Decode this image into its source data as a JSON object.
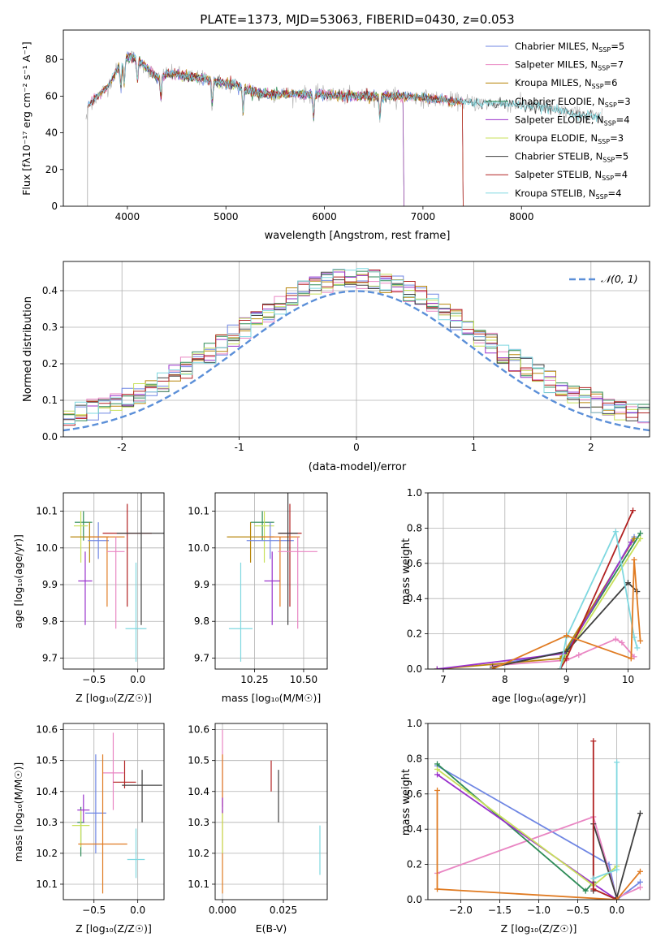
{
  "title": "PLATE=1373, MJD=53063, FIBERID=0430, z=0.053",
  "colors": {
    "chabrier_miles": "#6f86e3",
    "salpeter_miles": "#e986c3",
    "kroupa_miles": "#b8860b",
    "chabrier_elodie": "#2e8b57",
    "salpeter_elodie": "#9932cc",
    "kroupa_elodie": "#c8e05a",
    "chabrier_stelib": "#404040",
    "salpeter_stelib": "#b22222",
    "kroupa_stelib": "#7fd8e0",
    "orange": "#e07b22",
    "normal": "#5b8fd8",
    "gridline": "#b0b0b0"
  },
  "chart_data": [
    {
      "id": "spectrum",
      "type": "line",
      "title": "PLATE=1373, MJD=53063, FIBERID=0430, z=0.053",
      "xlabel": "wavelength [Angstrom, rest frame]",
      "ylabel": "Flux [fλ10⁻¹⁷ erg cm⁻² s⁻¹ A⁻¹]",
      "xlim": [
        3350,
        9300
      ],
      "ylim": [
        0,
        96
      ],
      "xticks": [
        4000,
        5000,
        6000,
        7000,
        8000
      ],
      "yticks": [
        0,
        20,
        40,
        60,
        80
      ],
      "grid": false,
      "legend_position": "top-right",
      "legend": [
        "Chabrier MILES, N_SSP=5",
        "Salpeter MILES, N_SSP=7",
        "Kroupa MILES, N_SSP=6",
        "Chabrier ELODIE, N_SSP=3",
        "Salpeter ELODIE, N_SSP=4",
        "Kroupa ELODIE, N_SSP=3",
        "Chabrier STELIB, N_SSP=5",
        "Salpeter STELIB, N_SSP=4",
        "Kroupa STELIB, N_SSP=4"
      ],
      "continuum": {
        "wavelength": [
          3600,
          3700,
          3800,
          3900,
          3950,
          4000,
          4100,
          4200,
          4300,
          4400,
          4500,
          4700,
          4900,
          5100,
          5300,
          5500,
          5800,
          6000,
          6200,
          6500,
          6800,
          7000,
          7200,
          7400,
          7600,
          7800,
          8000,
          8200,
          8400,
          8600,
          8800
        ],
        "flux": [
          55,
          60,
          65,
          75,
          78,
          82,
          80,
          75,
          70,
          72,
          72,
          70,
          68,
          66,
          62,
          61,
          61,
          61,
          60,
          60,
          60,
          59,
          58,
          57,
          56,
          56,
          55,
          54,
          52,
          50,
          48
        ]
      },
      "model_ends": {
        "miles_kroupa_max_wavelength": 7400,
        "elodie_max_wavelength": 6800,
        "stelib_max_wavelength": 8800
      }
    },
    {
      "id": "residuals",
      "type": "histogram",
      "xlabel": "(data-model)/error",
      "ylabel": "Normed distribution",
      "xlim": [
        -2.5,
        2.5
      ],
      "ylim": [
        0,
        0.48
      ],
      "xticks": [
        -2,
        -1,
        0,
        1,
        2
      ],
      "yticks": [
        0.0,
        0.1,
        0.2,
        0.3,
        0.4
      ],
      "grid": true,
      "legend_position": "top-right",
      "legend": [
        "𝒩(0, 1)"
      ],
      "bin_edges_start": -2.5,
      "bin_width": 0.1,
      "normal_curve": {
        "mean": 0,
        "sigma": 1
      }
    },
    {
      "id": "age_vs_Z",
      "type": "scatter",
      "xlabel": "Z [log₁₀(Z/Z☉)]",
      "ylabel": "age  [log₁₀(age/yr)]",
      "xlim": [
        -0.85,
        0.3
      ],
      "ylim": [
        9.67,
        10.15
      ],
      "xticks": [
        -0.5,
        0.0
      ],
      "yticks": [
        9.7,
        9.8,
        9.9,
        10.0,
        10.1
      ],
      "grid": true,
      "points": [
        {
          "model": "chabrier_elodie",
          "x": -0.62,
          "y": 10.07,
          "xerr": 0.1,
          "yerr_lo": 0.05,
          "yerr_hi": 0.03
        },
        {
          "model": "kroupa_elodie",
          "x": -0.65,
          "y": 10.06,
          "xerr": 0.08,
          "yerr_lo": 0.1,
          "yerr_hi": 0.04
        },
        {
          "model": "kroupa_miles",
          "x": -0.55,
          "y": 10.03,
          "xerr": 0.22,
          "yerr_lo": 0.07,
          "yerr_hi": 0.04
        },
        {
          "model": "chabrier_miles",
          "x": -0.45,
          "y": 10.02,
          "xerr": 0.12,
          "yerr_lo": 0.05,
          "yerr_hi": 0.05
        },
        {
          "model": "salpeter_stelib",
          "x": -0.12,
          "y": 10.04,
          "xerr": 0.28,
          "yerr_lo": 0.2,
          "yerr_hi": 0.08
        },
        {
          "model": "orange",
          "x": -0.35,
          "y": 10.03,
          "xerr": 0.2,
          "yerr_lo": 0.19,
          "yerr_hi": 0.0
        },
        {
          "model": "chabrier_stelib",
          "x": 0.04,
          "y": 10.04,
          "xerr": 0.28,
          "yerr_lo": 0.25,
          "yerr_hi": 0.11
        },
        {
          "model": "salpeter_miles",
          "x": -0.25,
          "y": 9.99,
          "xerr": 0.1,
          "yerr_lo": 0.21,
          "yerr_hi": 0.04
        },
        {
          "model": "salpeter_elodie",
          "x": -0.6,
          "y": 9.91,
          "xerr": 0.08,
          "yerr_lo": 0.12,
          "yerr_hi": 0.08
        },
        {
          "model": "kroupa_stelib",
          "x": -0.02,
          "y": 9.78,
          "xerr": 0.12,
          "yerr_lo": 0.09,
          "yerr_hi": 0.18
        }
      ]
    },
    {
      "id": "age_vs_mass",
      "type": "scatter",
      "xlabel": "mass [log₁₀(M/M☉)]",
      "ylabel": "",
      "xlim": [
        10.05,
        10.62
      ],
      "ylim": [
        9.67,
        10.15
      ],
      "xticks": [
        10.25,
        10.5
      ],
      "yticks": [
        9.7,
        9.8,
        9.9,
        10.0,
        10.1
      ],
      "grid": true,
      "points": [
        {
          "model": "chabrier_elodie",
          "x": 10.29,
          "y": 10.07,
          "xerr": 0.06,
          "yerr_lo": 0.05,
          "yerr_hi": 0.03
        },
        {
          "model": "kroupa_elodie",
          "x": 10.3,
          "y": 10.06,
          "xerr": 0.05,
          "yerr_lo": 0.1,
          "yerr_hi": 0.04
        },
        {
          "model": "kroupa_miles",
          "x": 10.23,
          "y": 10.03,
          "xerr": 0.12,
          "yerr_lo": 0.07,
          "yerr_hi": 0.04
        },
        {
          "model": "chabrier_miles",
          "x": 10.33,
          "y": 10.02,
          "xerr": 0.12,
          "yerr_lo": 0.05,
          "yerr_hi": 0.05
        },
        {
          "model": "salpeter_stelib",
          "x": 10.43,
          "y": 10.04,
          "xerr": 0.06,
          "yerr_lo": 0.2,
          "yerr_hi": 0.08
        },
        {
          "model": "orange",
          "x": 10.38,
          "y": 10.03,
          "xerr": 0.1,
          "yerr_lo": 0.19,
          "yerr_hi": 0.0
        },
        {
          "model": "chabrier_stelib",
          "x": 10.42,
          "y": 10.04,
          "xerr": 0.05,
          "yerr_lo": 0.25,
          "yerr_hi": 0.11
        },
        {
          "model": "salpeter_miles",
          "x": 10.47,
          "y": 9.99,
          "xerr": 0.1,
          "yerr_lo": 0.21,
          "yerr_hi": 0.04
        },
        {
          "model": "salpeter_elodie",
          "x": 10.34,
          "y": 9.91,
          "xerr": 0.04,
          "yerr_lo": 0.12,
          "yerr_hi": 0.08
        },
        {
          "model": "kroupa_stelib",
          "x": 10.18,
          "y": 9.78,
          "xerr": 0.06,
          "yerr_lo": 0.09,
          "yerr_hi": 0.18
        }
      ]
    },
    {
      "id": "mass_weight_vs_age",
      "type": "line",
      "xlabel": "age  [log₁₀(age/yr)]",
      "ylabel": "mass weight",
      "xlim": [
        6.75,
        10.35
      ],
      "ylim": [
        0,
        1.0
      ],
      "xticks": [
        7,
        8,
        9,
        10
      ],
      "yticks": [
        0.0,
        0.2,
        0.4,
        0.6,
        0.8,
        1.0
      ],
      "grid": true,
      "series": [
        {
          "model": "chabrier_miles",
          "x": [
            7.8,
            9.0,
            10.1
          ],
          "y": [
            0.02,
            0.1,
            0.75
          ]
        },
        {
          "model": "salpeter_miles",
          "x": [
            7.8,
            9.0,
            9.2,
            9.8,
            9.9,
            10.1
          ],
          "y": [
            0.02,
            0.05,
            0.08,
            0.17,
            0.15,
            0.07
          ]
        },
        {
          "model": "kroupa_miles",
          "x": [
            6.9,
            8.9,
            10.1
          ],
          "y": [
            0.0,
            0.06,
            0.74
          ]
        },
        {
          "model": "chabrier_elodie",
          "x": [
            8.9,
            9.0,
            10.2
          ],
          "y": [
            0.0,
            0.1,
            0.77
          ]
        },
        {
          "model": "salpeter_elodie",
          "x": [
            6.9,
            9.0,
            10.05
          ],
          "y": [
            0.0,
            0.09,
            0.72
          ]
        },
        {
          "model": "kroupa_elodie",
          "x": [
            8.9,
            9.0,
            10.2
          ],
          "y": [
            0.0,
            0.08,
            0.74
          ]
        },
        {
          "model": "chabrier_stelib",
          "x": [
            7.8,
            9.0,
            10.0,
            10.15
          ],
          "y": [
            0.01,
            0.1,
            0.49,
            0.44
          ]
        },
        {
          "model": "salpeter_stelib",
          "x": [
            8.9,
            9.0,
            10.08
          ],
          "y": [
            0.0,
            0.06,
            0.9
          ]
        },
        {
          "model": "kroupa_stelib",
          "x": [
            8.9,
            9.0,
            9.8,
            10.1,
            10.15
          ],
          "y": [
            0.0,
            0.18,
            0.78,
            0.18,
            0.12
          ]
        },
        {
          "model": "orange",
          "x": [
            7.8,
            9.0,
            10.05,
            10.1,
            10.2
          ],
          "y": [
            0.0,
            0.19,
            0.06,
            0.62,
            0.16
          ]
        }
      ]
    },
    {
      "id": "mass_vs_Z",
      "type": "scatter",
      "xlabel": "Z [log₁₀(Z/Z☉)]",
      "ylabel": "mass [log₁₀(M/M☉)]",
      "xlim": [
        -0.85,
        0.3
      ],
      "ylim": [
        10.05,
        10.62
      ],
      "xticks": [
        -0.5,
        0.0
      ],
      "yticks": [
        10.1,
        10.2,
        10.3,
        10.4,
        10.5,
        10.6
      ],
      "grid": true,
      "points": [
        {
          "model": "chabrier_elodie",
          "x": -0.65,
          "y": 10.3,
          "xerr": 0.04,
          "yerr_lo": 0.11,
          "yerr_hi": 0.05
        },
        {
          "model": "kroupa_elodie",
          "x": -0.65,
          "y": 10.29,
          "xerr": 0.1,
          "yerr_lo": 0.07,
          "yerr_hi": 0.05
        },
        {
          "model": "salpeter_elodie",
          "x": -0.62,
          "y": 10.34,
          "xerr": 0.07,
          "yerr_lo": 0.04,
          "yerr_hi": 0.05
        },
        {
          "model": "chabrier_miles",
          "x": -0.48,
          "y": 10.33,
          "xerr": 0.12,
          "yerr_lo": 0.13,
          "yerr_hi": 0.19
        },
        {
          "model": "salpeter_miles",
          "x": -0.28,
          "y": 10.46,
          "xerr": 0.12,
          "yerr_lo": 0.12,
          "yerr_hi": 0.13
        },
        {
          "model": "orange",
          "x": -0.4,
          "y": 10.23,
          "xerr": 0.28,
          "yerr_lo": 0.16,
          "yerr_hi": 0.29
        },
        {
          "model": "salpeter_stelib",
          "x": -0.15,
          "y": 10.43,
          "xerr": 0.13,
          "yerr_lo": 0.02,
          "yerr_hi": 0.07
        },
        {
          "model": "chabrier_stelib",
          "x": 0.05,
          "y": 10.42,
          "xerr": 0.23,
          "yerr_lo": 0.12,
          "yerr_hi": 0.05
        },
        {
          "model": "kroupa_stelib",
          "x": -0.02,
          "y": 10.18,
          "xerr": 0.1,
          "yerr_lo": 0.06,
          "yerr_hi": 0.1
        }
      ]
    },
    {
      "id": "mass_vs_ebv",
      "type": "scatter",
      "xlabel": "E(B-V)",
      "ylabel": "",
      "xlim": [
        -0.003,
        0.043
      ],
      "ylim": [
        10.05,
        10.62
      ],
      "xticks": [
        0.0,
        0.025
      ],
      "yticks": [
        10.1,
        10.2,
        10.3,
        10.4,
        10.5,
        10.6
      ],
      "grid": true,
      "points": [
        {
          "model": "salpeter_miles",
          "x": 0.0,
          "y": 10.47,
          "yerr_lo": 0.12,
          "yerr_hi": 0.13
        },
        {
          "model": "orange",
          "x": 0.0,
          "y": 10.25,
          "yerr_lo": 0.18,
          "yerr_hi": 0.27
        },
        {
          "model": "kroupa_elodie",
          "x": 0.0,
          "y": 10.28,
          "yerr_lo": 0.08,
          "yerr_hi": 0.06
        },
        {
          "model": "salpeter_elodie",
          "x": 0.0,
          "y": 10.35,
          "yerr_lo": 0.02,
          "yerr_hi": 0.03
        },
        {
          "model": "salpeter_stelib",
          "x": 0.02,
          "y": 10.44,
          "yerr_lo": 0.04,
          "yerr_hi": 0.06
        },
        {
          "model": "chabrier_stelib",
          "x": 0.023,
          "y": 10.39,
          "yerr_lo": 0.09,
          "yerr_hi": 0.08
        },
        {
          "model": "kroupa_stelib",
          "x": 0.04,
          "y": 10.2,
          "yerr_lo": 0.07,
          "yerr_hi": 0.09
        }
      ]
    },
    {
      "id": "mass_weight_vs_Z",
      "type": "line",
      "xlabel": "Z [log₁₀(Z/Z☉)]",
      "ylabel": "mass weight",
      "xlim": [
        -2.42,
        0.42
      ],
      "ylim": [
        0,
        1.0
      ],
      "xticks": [
        -2.0,
        -1.5,
        -1.0,
        -0.5,
        0.0
      ],
      "yticks": [
        0.0,
        0.2,
        0.4,
        0.6,
        0.8,
        1.0
      ],
      "grid": true,
      "series": [
        {
          "model": "chabrier_miles",
          "x": [
            -2.3,
            -0.1,
            0.0,
            0.3
          ],
          "y": [
            0.76,
            0.2,
            0.0,
            0.1
          ]
        },
        {
          "model": "salpeter_miles",
          "x": [
            -2.3,
            -0.3,
            0.0,
            0.3
          ],
          "y": [
            0.15,
            0.47,
            0.01,
            0.07
          ]
        },
        {
          "model": "chabrier_elodie",
          "x": [
            -2.3,
            -0.4,
            -0.3
          ],
          "y": [
            0.77,
            0.05,
            0.1
          ]
        },
        {
          "model": "salpeter_elodie",
          "x": [
            -2.3,
            -0.3,
            0.0
          ],
          "y": [
            0.71,
            0.09,
            0.0
          ]
        },
        {
          "model": "kroupa_elodie",
          "x": [
            -2.3,
            -0.3,
            0.0
          ],
          "y": [
            0.74,
            0.08,
            0.19
          ]
        },
        {
          "model": "chabrier_stelib",
          "x": [
            -0.3,
            -0.3,
            0.0,
            0.3
          ],
          "y": [
            0.05,
            0.43,
            0.01,
            0.49
          ]
        },
        {
          "model": "salpeter_stelib",
          "x": [
            -0.3,
            -0.3,
            0.0
          ],
          "y": [
            0.9,
            0.06,
            0.0
          ]
        },
        {
          "model": "kroupa_stelib",
          "x": [
            0.0,
            0.0,
            -0.3
          ],
          "y": [
            0.78,
            0.17,
            0.12
          ]
        },
        {
          "model": "orange",
          "x": [
            -2.3,
            -2.3,
            0.0,
            0.3
          ],
          "y": [
            0.62,
            0.06,
            0.0,
            0.16
          ]
        }
      ]
    }
  ]
}
